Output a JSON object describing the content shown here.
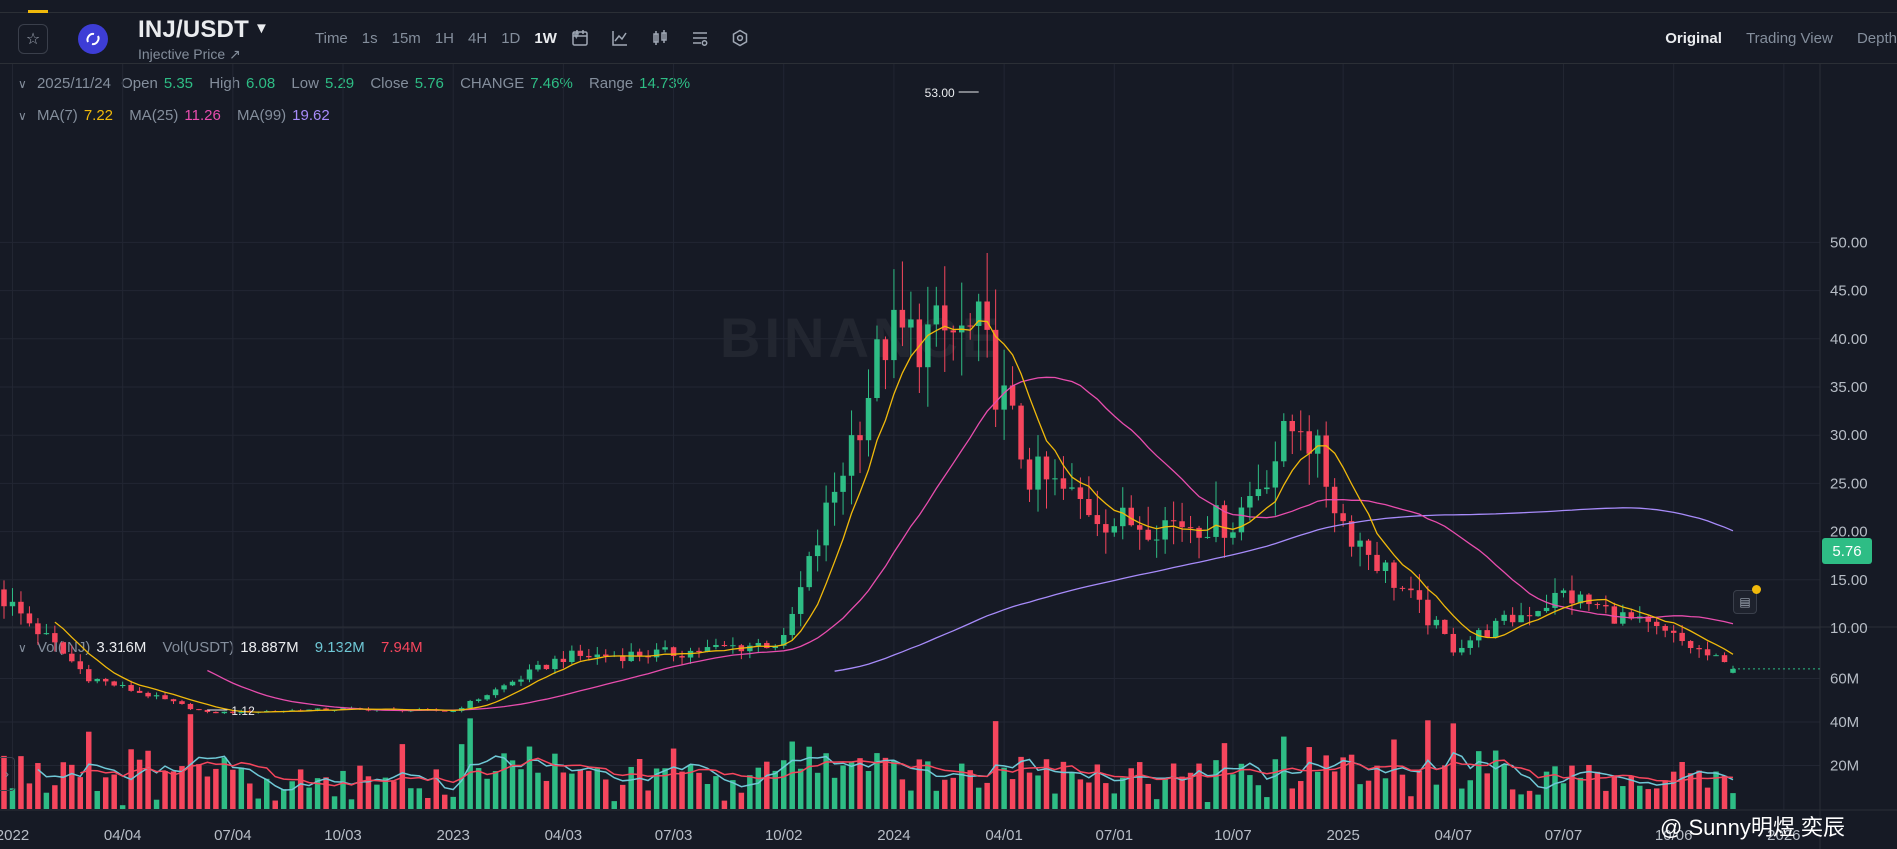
{
  "header": {
    "pair": "INJ/USDT",
    "subtitle": "Injective Price ↗",
    "intervals": [
      "Time",
      "1s",
      "15m",
      "1H",
      "4H",
      "1D",
      "1W"
    ],
    "active_interval": "1W",
    "views": [
      "Original",
      "Trading View",
      "Depth"
    ],
    "active_view": "Original"
  },
  "ohlc": {
    "date": "2025/11/24",
    "open_label": "Open",
    "open": "5.35",
    "high_label": "High",
    "high": "6.08",
    "low_label": "Low",
    "low": "5.29",
    "close_label": "Close",
    "close": "5.76",
    "change_label": "CHANGE",
    "change": "7.46%",
    "range_label": "Range",
    "range": "14.73%"
  },
  "ma": {
    "ma7_label": "MA(7)",
    "ma7": "7.22",
    "ma25_label": "MA(25)",
    "ma25": "11.26",
    "ma99_label": "MA(99)",
    "ma99": "19.62"
  },
  "vol": {
    "inj_label": "Vol(INJ)",
    "inj": "3.316M",
    "usdt_label": "Vol(USDT)",
    "usdt": "18.887M",
    "ma1": "9.132M",
    "ma2": "7.94M"
  },
  "current_price": "5.76",
  "watermark": "BINANCE",
  "footer_watermark": "@ Sunny明煜 奕辰",
  "colors": {
    "up": "#2ebd85",
    "down": "#f6465d",
    "ma7": "#f0b90b",
    "ma25": "#e84dae",
    "ma99": "#a78bfa",
    "vol_ma1": "#6fc8d6",
    "vol_ma2": "#f6465d"
  },
  "chart_data": {
    "type": "candlestick",
    "interval": "1W",
    "price_axis": {
      "ticks": [
        "10.00",
        "15.00",
        "20.00",
        "25.00",
        "30.00",
        "35.00",
        "40.00",
        "45.00",
        "50.00"
      ],
      "ylim": [
        2,
        55
      ]
    },
    "volume_axis": {
      "ticks": [
        "20M",
        "40M",
        "60M"
      ],
      "ylim": [
        0,
        80
      ]
    },
    "time_labels": [
      "2022",
      "04/04",
      "07/04",
      "10/03",
      "2023",
      "04/03",
      "07/03",
      "10/02",
      "2024",
      "04/01",
      "07/01",
      "10/07",
      "2025",
      "04/07",
      "07/07",
      "10/06",
      "2026"
    ],
    "annotations": [
      {
        "text": "53.00",
        "x": "2024-03-11",
        "y": 53.0
      },
      {
        "text": "1.12",
        "x": "2022-06-13",
        "y": 1.12
      }
    ],
    "key_points": [
      {
        "date": "2021-12-27",
        "close": 13.0
      },
      {
        "date": "2022-03-07",
        "close": 4.9
      },
      {
        "date": "2022-06-13",
        "close": 1.2
      },
      {
        "date": "2022-10-03",
        "close": 1.6
      },
      {
        "date": "2023-01-02",
        "close": 1.4
      },
      {
        "date": "2023-04-03",
        "close": 7.0
      },
      {
        "date": "2023-07-03",
        "close": 7.4
      },
      {
        "date": "2023-10-02",
        "close": 8.6
      },
      {
        "date": "2023-12-25",
        "close": 40.0
      },
      {
        "date": "2024-03-11",
        "close": 40.5
      },
      {
        "date": "2024-04-22",
        "close": 26.0
      },
      {
        "date": "2024-07-01",
        "close": 21.0
      },
      {
        "date": "2024-10-07",
        "close": 21.0
      },
      {
        "date": "2024-12-02",
        "close": 32.0
      },
      {
        "date": "2025-01-06",
        "close": 21.0
      },
      {
        "date": "2025-04-07",
        "close": 8.0
      },
      {
        "date": "2025-07-07",
        "close": 13.5
      },
      {
        "date": "2025-10-06",
        "close": 9.0
      },
      {
        "date": "2025-11-24",
        "open": 5.35,
        "high": 6.08,
        "low": 5.29,
        "close": 5.76
      }
    ]
  }
}
